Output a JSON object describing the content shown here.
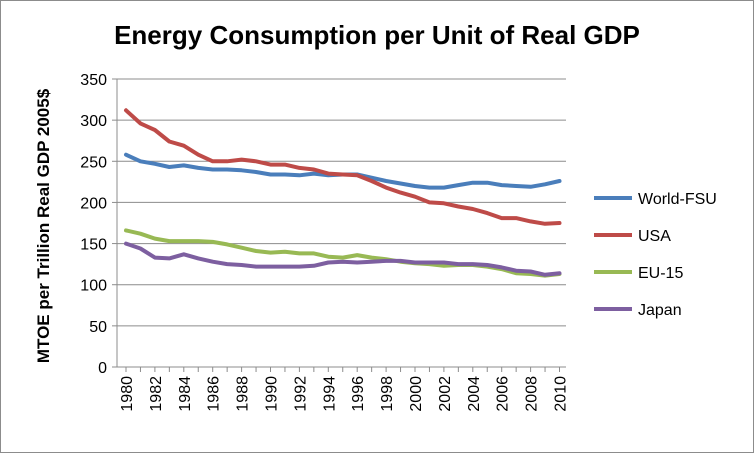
{
  "chart_data": {
    "type": "line",
    "title": "Energy Consumption per Unit of Real GDP",
    "ylabel": "MTOE per Trillion Real GDP 2005$",
    "xlabel": "",
    "ylim": [
      0,
      350
    ],
    "yticks": [
      "0",
      "50",
      "100",
      "150",
      "200",
      "250",
      "300",
      "350"
    ],
    "xlim": [
      1980,
      2010
    ],
    "xticks": [
      "1980",
      "1982",
      "1984",
      "1986",
      "1988",
      "1990",
      "1992",
      "1994",
      "1996",
      "1998",
      "2000",
      "2002",
      "2004",
      "2006",
      "2008",
      "2010"
    ],
    "grid": "horizontal",
    "legend_position": "right",
    "x": [
      1980,
      1981,
      1982,
      1983,
      1984,
      1985,
      1986,
      1987,
      1988,
      1989,
      1990,
      1991,
      1992,
      1993,
      1994,
      1995,
      1996,
      1997,
      1998,
      1999,
      2000,
      2001,
      2002,
      2003,
      2004,
      2005,
      2006,
      2007,
      2008,
      2009,
      2010
    ],
    "series": [
      {
        "name": "World-FSU",
        "color": "#4a7ebb",
        "values": [
          258,
          250,
          247,
          243,
          245,
          242,
          240,
          240,
          239,
          237,
          234,
          234,
          233,
          235,
          233,
          234,
          234,
          230,
          226,
          223,
          220,
          218,
          218,
          221,
          224,
          224,
          221,
          220,
          219,
          222,
          226
        ]
      },
      {
        "name": "USA",
        "color": "#be4b48",
        "values": [
          312,
          296,
          288,
          274,
          269,
          258,
          250,
          250,
          252,
          250,
          246,
          246,
          242,
          240,
          235,
          234,
          233,
          226,
          218,
          212,
          207,
          200,
          199,
          195,
          192,
          187,
          181,
          181,
          177,
          174,
          175
        ]
      },
      {
        "name": "EU-15",
        "color": "#98b954",
        "values": [
          166,
          162,
          156,
          153,
          153,
          153,
          152,
          149,
          145,
          141,
          139,
          140,
          138,
          138,
          134,
          133,
          136,
          133,
          131,
          128,
          126,
          125,
          123,
          124,
          124,
          122,
          119,
          114,
          113,
          111,
          113
        ]
      },
      {
        "name": "Japan",
        "color": "#7d5fa0",
        "values": [
          150,
          144,
          133,
          132,
          137,
          132,
          128,
          125,
          124,
          122,
          122,
          122,
          122,
          123,
          127,
          128,
          127,
          128,
          129,
          129,
          127,
          127,
          127,
          125,
          125,
          124,
          121,
          117,
          116,
          112,
          114
        ]
      }
    ]
  }
}
